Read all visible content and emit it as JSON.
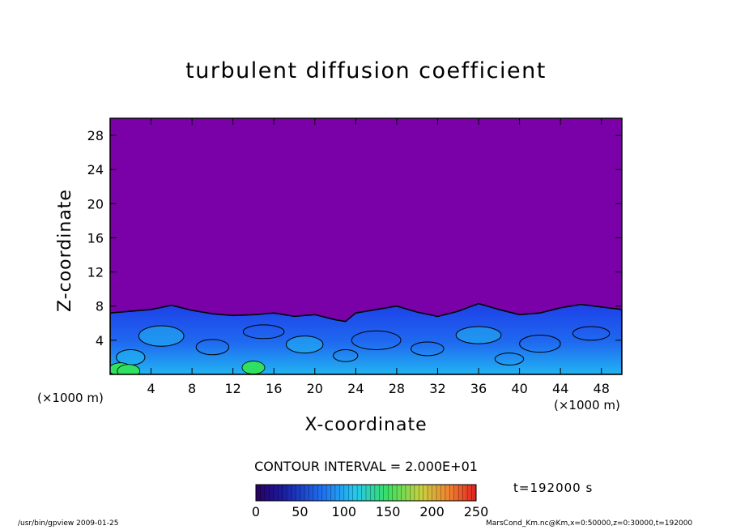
{
  "title": "turbulent diffusion coefficient",
  "xlabel": "X-coordinate",
  "ylabel": "Z-coordinate",
  "x_unit_note": "(×1000 m)",
  "y_unit_note": "(×1000 m)",
  "contour_label": "CONTOUR INTERVAL = 2.000E+01",
  "time_label": "t=192000 s",
  "footer_left": "/usr/bin/gpview   2009-01-25",
  "footer_right": "MarsCond_Km.nc@Km,x=0:50000,z=0:30000,t=192000",
  "colors": {
    "background_field": "#7a00a8",
    "low": "#1040e0",
    "mid": "#20b8f0",
    "high": "#30e060",
    "contour_line": "#000000"
  },
  "chart_data": {
    "type": "heatmap",
    "title": "turbulent diffusion coefficient",
    "xlabel": "X-coordinate",
    "ylabel": "Z-coordinate",
    "xlim": [
      0,
      50
    ],
    "ylim": [
      0,
      30
    ],
    "x_ticks": [
      4,
      8,
      12,
      16,
      20,
      24,
      28,
      32,
      36,
      40,
      44,
      48
    ],
    "y_ticks": [
      4,
      8,
      12,
      16,
      20,
      24,
      28
    ],
    "colorbar": {
      "ticks": [
        0,
        50,
        100,
        150,
        200,
        250
      ],
      "range": [
        0,
        250
      ],
      "interval": 20
    },
    "layer_top_profile": {
      "x": [
        0,
        2,
        4,
        6,
        8,
        10,
        12,
        14,
        16,
        18,
        20,
        22,
        23,
        24,
        26,
        28,
        30,
        32,
        34,
        36,
        38,
        40,
        42,
        44,
        46,
        48,
        50
      ],
      "z": [
        7.2,
        7.4,
        7.6,
        8.1,
        7.5,
        7.1,
        6.9,
        7.0,
        7.2,
        6.8,
        7.0,
        6.4,
        6.2,
        7.2,
        7.6,
        8.0,
        7.3,
        6.8,
        7.4,
        8.3,
        7.6,
        7.0,
        7.2,
        7.8,
        8.2,
        7.9,
        7.6
      ]
    }
  }
}
